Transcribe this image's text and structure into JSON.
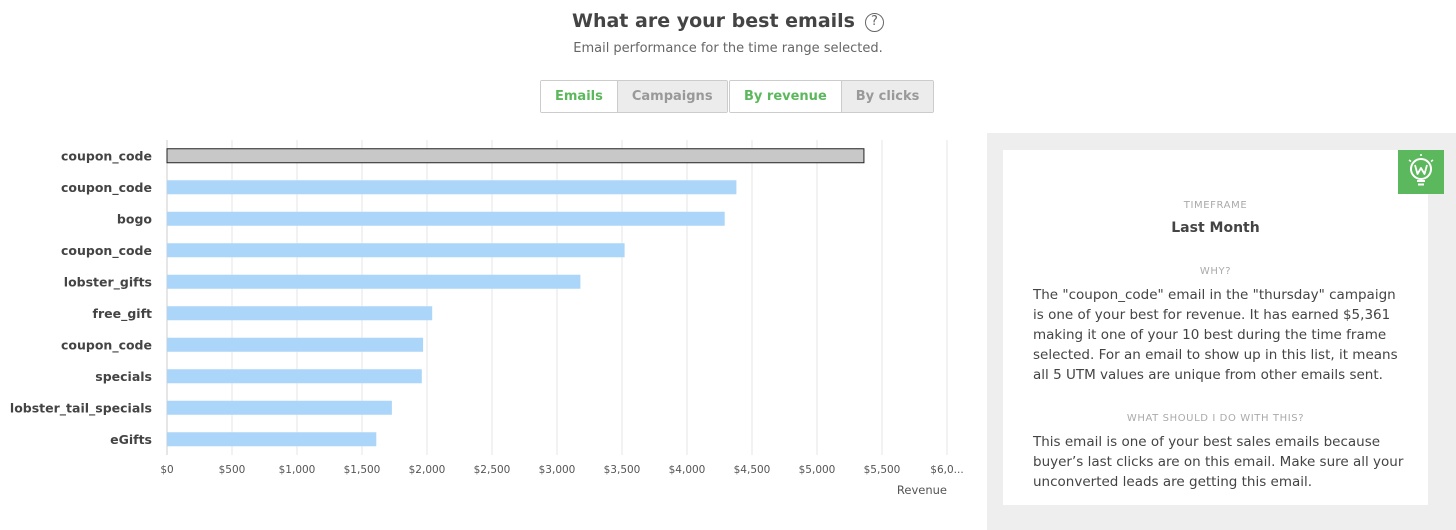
{
  "header": {
    "title": "What are your best emails",
    "help_glyph": "?",
    "subtitle": "Email performance for the time range selected."
  },
  "toggles": {
    "type": {
      "active": "Emails",
      "inactive": "Campaigns"
    },
    "metric": {
      "active": "By revenue",
      "inactive": "By clicks"
    }
  },
  "chart_data": {
    "type": "bar",
    "orientation": "horizontal",
    "categories": [
      "coupon_code",
      "coupon_code",
      "bogo",
      "coupon_code",
      "lobster_gifts",
      "free_gift",
      "coupon_code",
      "specials",
      "lobster_tail_specials",
      "eGifts"
    ],
    "values": [
      5361,
      4380,
      4290,
      3520,
      3180,
      2040,
      1970,
      1960,
      1730,
      1610
    ],
    "highlight_index": 0,
    "xlim": [
      0,
      6000
    ],
    "xticks": [
      "$0",
      "$500",
      "$1,000",
      "$1,500",
      "$2,000",
      "$2,500",
      "$3,000",
      "$3,500",
      "$4,000",
      "$4,500",
      "$5,000",
      "$5,500",
      "$6,0..."
    ],
    "xlabel": "Revenue",
    "grid": true,
    "colors": {
      "bar": "#acd6f9",
      "highlight": "#c8c8c8",
      "highlight_stroke": "#222222",
      "grid": "#e6e6e6"
    }
  },
  "insight": {
    "timeframe_label": "TIMEFRAME",
    "timeframe_value": "Last Month",
    "why_label": "WHY?",
    "why_text": "The \"coupon_code\" email in the \"thursday\" campaign is one of your best for revenue. It has earned $5,361 making it one of your 10 best during the time frame selected. For an email to show up in this list, it means all 5 UTM values are unique from other emails sent.",
    "action_label": "WHAT SHOULD I DO WITH THIS?",
    "action_text": "This email is one of your best sales emails because buyer’s last clicks are on this email. Make sure all your unconverted leads are getting this email.",
    "badge_icon": "lightbulb-w-icon",
    "badge_color": "#5cb85c"
  }
}
